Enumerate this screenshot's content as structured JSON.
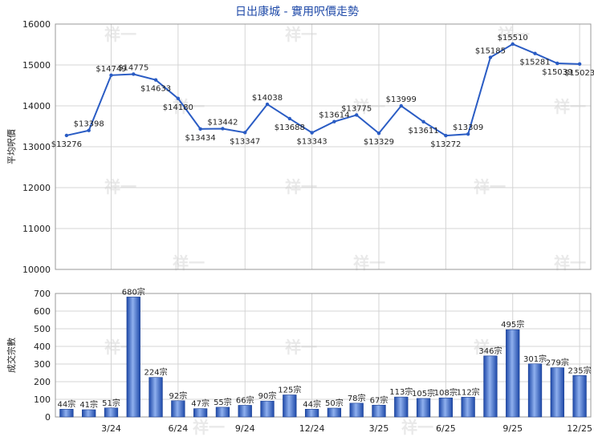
{
  "chart_data": [
    {
      "type": "line",
      "title": "日出康城 - 實用呎價走勢",
      "ylabel": "平均呎價",
      "ylim": [
        10000,
        16000
      ],
      "yticks": [
        10000,
        11000,
        12000,
        13000,
        14000,
        15000,
        16000
      ],
      "x_tick_labels": [
        "3/24",
        "6/24",
        "9/24",
        "12/24",
        "3/25",
        "6/25",
        "9/25",
        "12/25"
      ],
      "x_tick_indices": [
        2,
        5,
        8,
        11,
        14,
        17,
        20,
        23
      ],
      "color": "#2a5cc4",
      "values": [
        13276,
        13398,
        14749,
        14775,
        14633,
        14180,
        13434,
        13442,
        13347,
        14038,
        13688,
        13343,
        13614,
        13775,
        13329,
        13999,
        13611,
        13272,
        13309,
        15185,
        15510,
        15281,
        15039,
        15023
      ],
      "labels": [
        "$13276",
        "$13398",
        "$14749",
        "$14775",
        "$14633",
        "$14180",
        "$13434",
        "$13442",
        "$13347",
        "$14038",
        "$13688",
        "$13343",
        "$13614",
        "$13775",
        "$13329",
        "$13999",
        "$13611",
        "$13272",
        "$13309",
        "$15185",
        "$15510",
        "$15281",
        "$15039",
        "$15023"
      ],
      "grid": true
    },
    {
      "type": "bar",
      "ylabel": "成交宗數",
      "ylim": [
        0,
        700
      ],
      "yticks": [
        0,
        100,
        200,
        300,
        400,
        500,
        600,
        700
      ],
      "x_tick_labels": [
        "3/24",
        "6/24",
        "9/24",
        "12/24",
        "3/25",
        "6/25",
        "9/25",
        "12/25"
      ],
      "x_tick_indices": [
        2,
        5,
        8,
        11,
        14,
        17,
        20,
        23
      ],
      "color": "#2a5cc4",
      "values": [
        44,
        41,
        51,
        680,
        224,
        92,
        47,
        55,
        66,
        90,
        125,
        44,
        50,
        78,
        67,
        113,
        105,
        108,
        112,
        346,
        495,
        301,
        279,
        235
      ],
      "labels": [
        "44宗",
        "41宗",
        "51宗",
        "680宗",
        "224宗",
        "92宗",
        "47宗",
        "55宗",
        "66宗",
        "90宗",
        "125宗",
        "44宗",
        "50宗",
        "78宗",
        "67宗",
        "113宗",
        "105宗",
        "108宗",
        "112宗",
        "346宗",
        "495宗",
        "301宗",
        "279宗",
        "235宗"
      ],
      "grid": true
    }
  ],
  "watermark": "祥一"
}
